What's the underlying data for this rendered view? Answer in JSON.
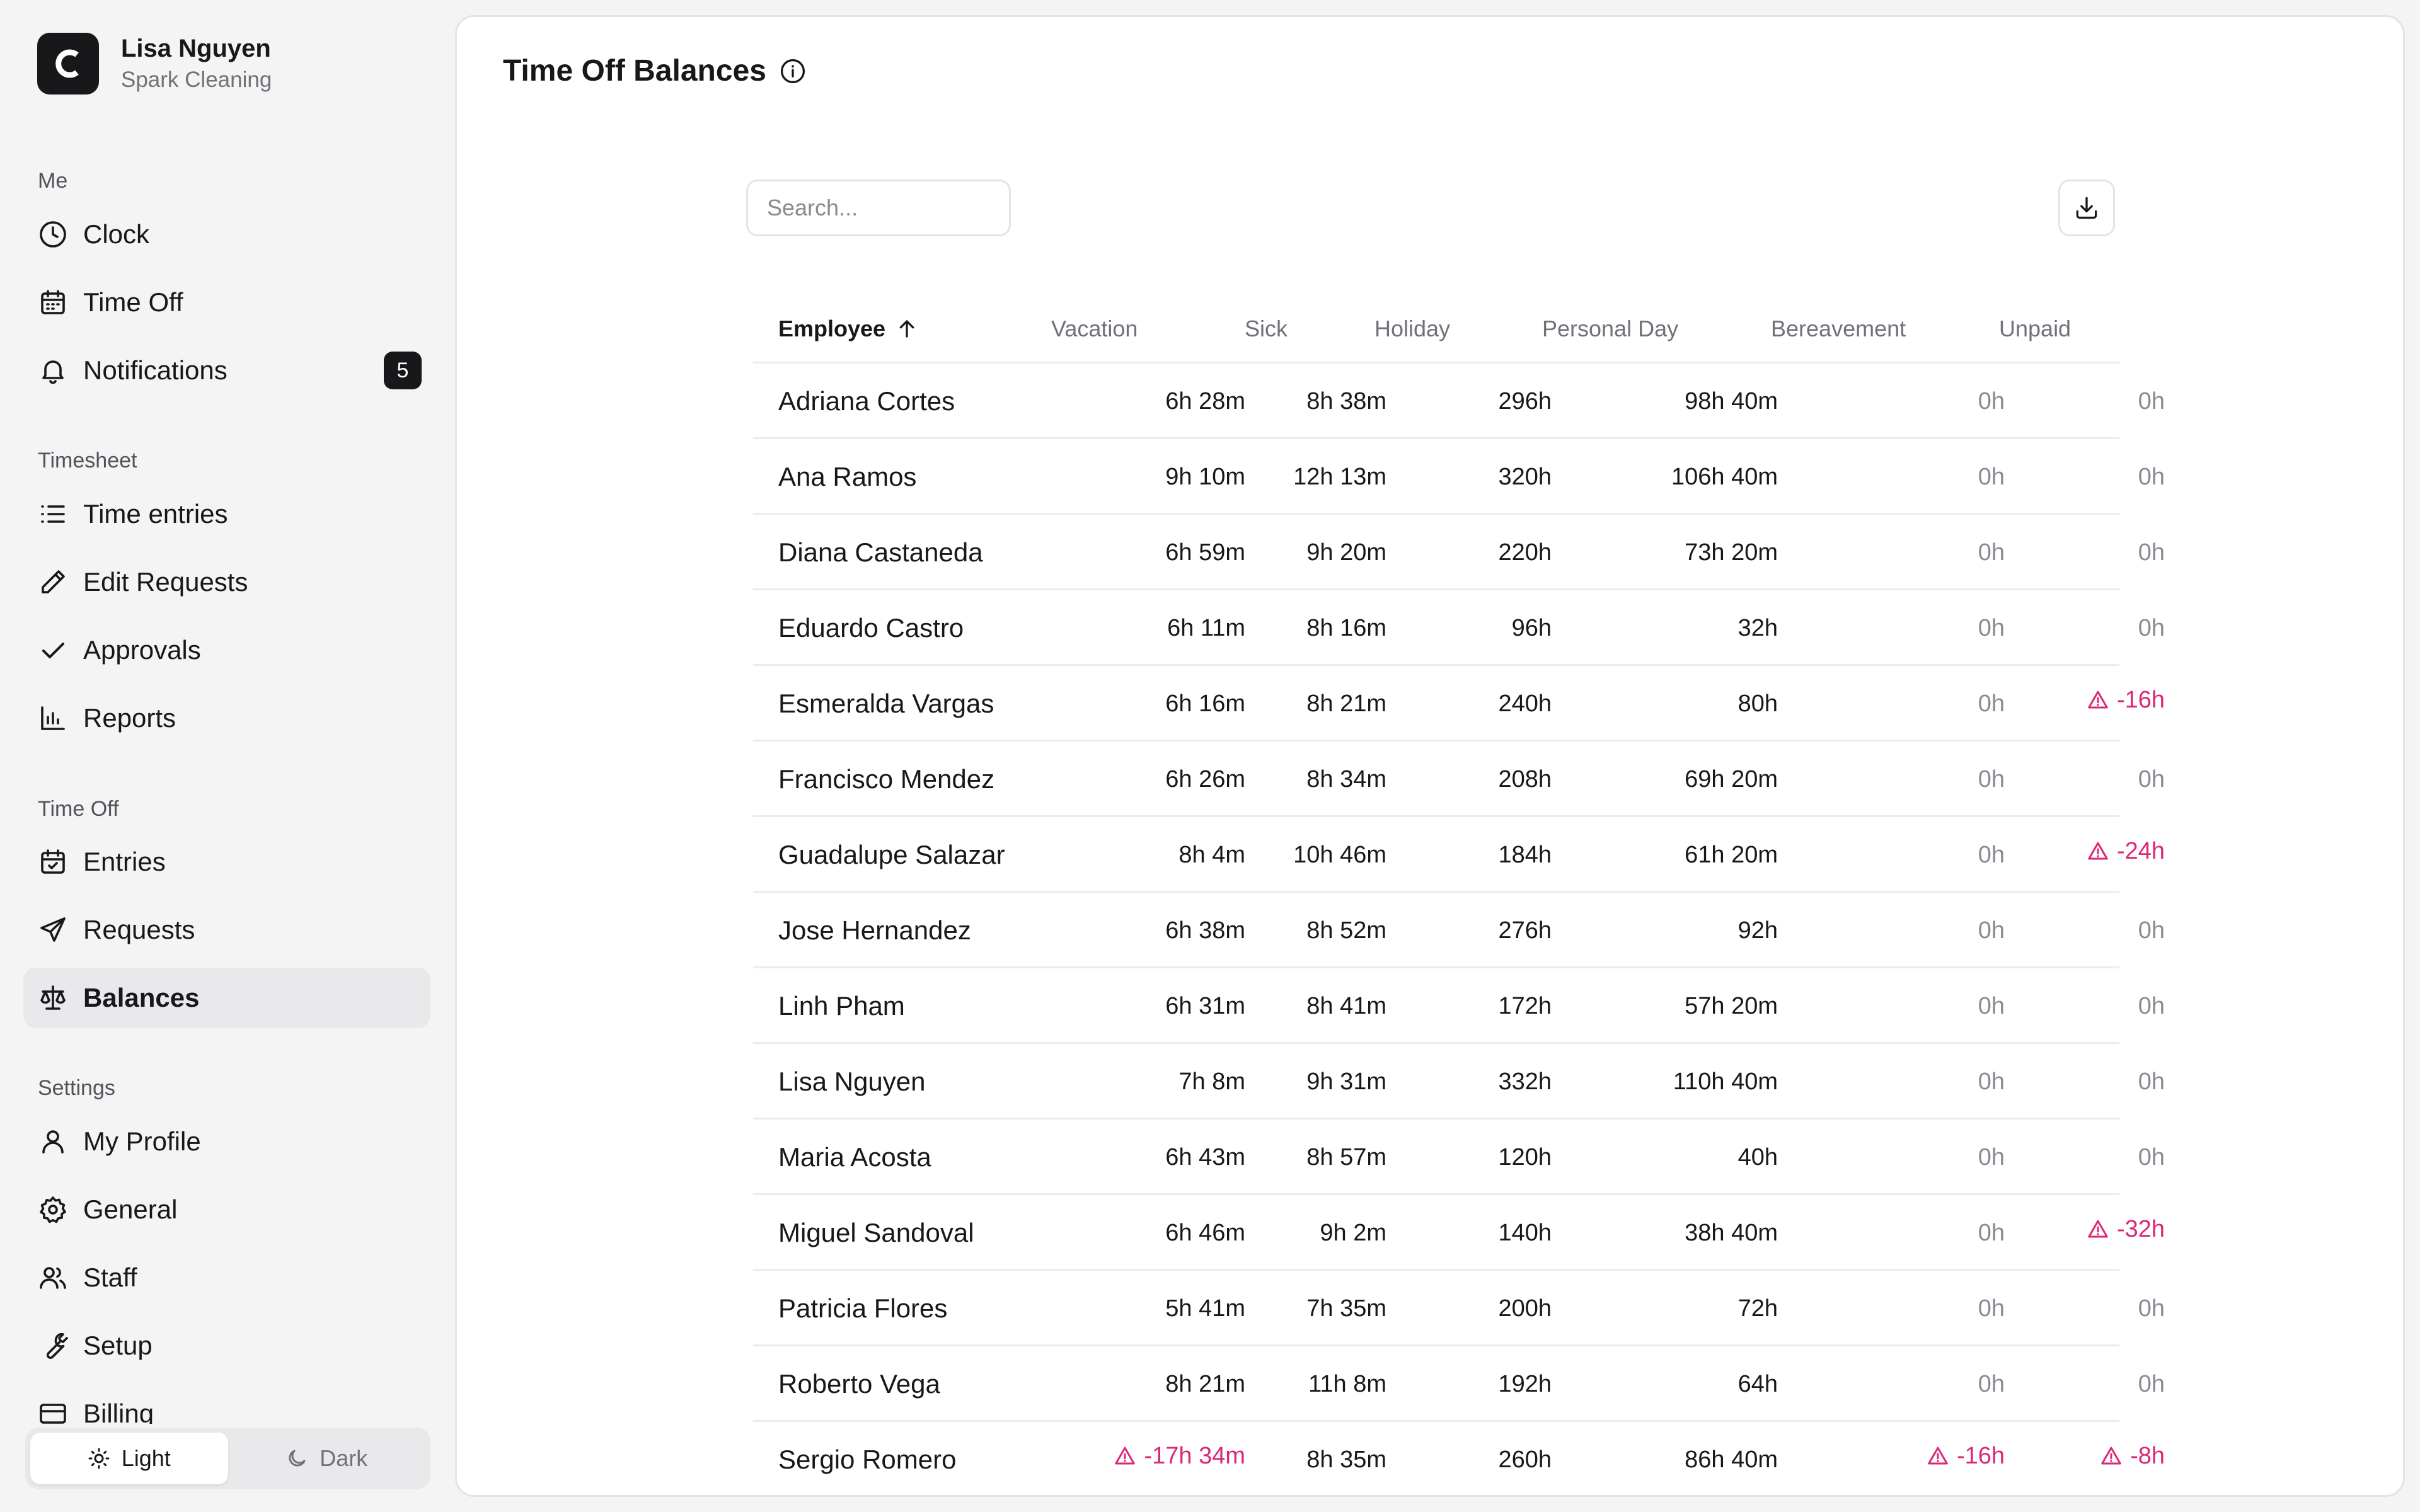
{
  "user": {
    "name": "Lisa Nguyen",
    "company": "Spark Cleaning",
    "logo_letter": "C"
  },
  "sidebar": {
    "sections": [
      {
        "label": "Me",
        "items": [
          {
            "label": "Clock",
            "icon": "clock-icon"
          },
          {
            "label": "Time Off",
            "icon": "calendar-icon"
          },
          {
            "label": "Notifications",
            "icon": "bell-icon",
            "badge": "5"
          }
        ]
      },
      {
        "label": "Timesheet",
        "items": [
          {
            "label": "Time entries",
            "icon": "list-icon"
          },
          {
            "label": "Edit Requests",
            "icon": "pencil-icon"
          },
          {
            "label": "Approvals",
            "icon": "check-icon"
          },
          {
            "label": "Reports",
            "icon": "bar-chart-icon"
          }
        ]
      },
      {
        "label": "Time Off",
        "items": [
          {
            "label": "Entries",
            "icon": "calendar-check-icon"
          },
          {
            "label": "Requests",
            "icon": "send-icon"
          },
          {
            "label": "Balances",
            "icon": "scale-icon",
            "active": true
          }
        ]
      },
      {
        "label": "Settings",
        "items": [
          {
            "label": "My Profile",
            "icon": "user-icon"
          },
          {
            "label": "General",
            "icon": "gear-icon"
          },
          {
            "label": "Staff",
            "icon": "users-icon"
          },
          {
            "label": "Setup",
            "icon": "wrench-icon"
          },
          {
            "label": "Billing",
            "icon": "credit-card-icon"
          }
        ]
      }
    ],
    "theme": {
      "light_label": "Light",
      "dark_label": "Dark",
      "selected": "light"
    }
  },
  "main": {
    "title": "Time Off Balances",
    "search_placeholder": "Search...",
    "table": {
      "columns": [
        "Employee",
        "Vacation",
        "Sick",
        "Holiday",
        "Personal Day",
        "Bereavement",
        "Unpaid"
      ],
      "sort_column": "Employee",
      "sort_direction": "ascending",
      "rows": [
        [
          "Adriana Cortes",
          "6h 28m",
          "8h 38m",
          "296h",
          "98h 40m",
          "0h",
          "0h"
        ],
        [
          "Ana Ramos",
          "9h 10m",
          "12h 13m",
          "320h",
          "106h 40m",
          "0h",
          "0h"
        ],
        [
          "Diana Castaneda",
          "6h 59m",
          "9h 20m",
          "220h",
          "73h 20m",
          "0h",
          "0h"
        ],
        [
          "Eduardo Castro",
          "6h 11m",
          "8h 16m",
          "96h",
          "32h",
          "0h",
          "0h"
        ],
        [
          "Esmeralda Vargas",
          "6h 16m",
          "8h 21m",
          "240h",
          "80h",
          "0h",
          "-16h"
        ],
        [
          "Francisco Mendez",
          "6h 26m",
          "8h 34m",
          "208h",
          "69h 20m",
          "0h",
          "0h"
        ],
        [
          "Guadalupe Salazar",
          "8h 4m",
          "10h 46m",
          "184h",
          "61h 20m",
          "0h",
          "-24h"
        ],
        [
          "Jose Hernandez",
          "6h 38m",
          "8h 52m",
          "276h",
          "92h",
          "0h",
          "0h"
        ],
        [
          "Linh Pham",
          "6h 31m",
          "8h 41m",
          "172h",
          "57h 20m",
          "0h",
          "0h"
        ],
        [
          "Lisa Nguyen",
          "7h 8m",
          "9h 31m",
          "332h",
          "110h 40m",
          "0h",
          "0h"
        ],
        [
          "Maria Acosta",
          "6h 43m",
          "8h 57m",
          "120h",
          "40h",
          "0h",
          "0h"
        ],
        [
          "Miguel Sandoval",
          "6h 46m",
          "9h 2m",
          "140h",
          "38h 40m",
          "0h",
          "-32h"
        ],
        [
          "Patricia Flores",
          "5h 41m",
          "7h 35m",
          "200h",
          "72h",
          "0h",
          "0h"
        ],
        [
          "Roberto Vega",
          "8h 21m",
          "11h 8m",
          "192h",
          "64h",
          "0h",
          "0h"
        ],
        [
          "Sergio Romero",
          "-17h 34m",
          "8h 35m",
          "260h",
          "86h 40m",
          "-16h",
          "-8h"
        ]
      ]
    }
  },
  "colors": {
    "negative": "#db2777",
    "accent": "#18181b",
    "muted": "#71717a"
  }
}
